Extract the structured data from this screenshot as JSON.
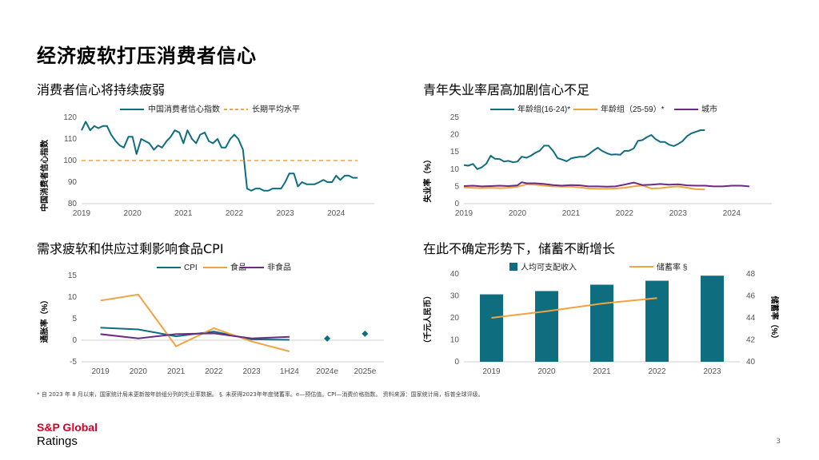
{
  "page_title": "经济疲软打压消费者信心",
  "colors": {
    "teal": "#0f6d80",
    "orange": "#f0a440",
    "purple": "#6b2a84",
    "axis": "#cfcfcf",
    "brand_red": "#d6002a"
  },
  "panels": {
    "p1_title": "消费者信心将持续疲弱",
    "p2_title": "青年失业率居高加剧信心不足",
    "p3_title": "需求疲软和供应过剩影响食品CPI",
    "p4_title": "在此不确定形势下，储蓄不断增长"
  },
  "chart_data": [
    {
      "type": "line",
      "ylabel": "中国消费者信心指数",
      "ylim": [
        80,
        120
      ],
      "yticks": [
        "80",
        "90",
        "100",
        "110",
        "120"
      ],
      "xticks": [
        "2019",
        "2020",
        "2021",
        "2022",
        "2023",
        "2024"
      ],
      "xrange": [
        2019.0,
        2024.75
      ],
      "series": [
        {
          "name": "中国消费者信心指数",
          "color": "#0f6d80",
          "style": "solid",
          "x": [
            2019.0,
            2019.08,
            2019.17,
            2019.25,
            2019.33,
            2019.42,
            2019.5,
            2019.58,
            2019.67,
            2019.75,
            2019.83,
            2019.92,
            2020.0,
            2020.08,
            2020.17,
            2020.25,
            2020.33,
            2020.42,
            2020.5,
            2020.58,
            2020.67,
            2020.75,
            2020.83,
            2020.92,
            2021.0,
            2021.08,
            2021.17,
            2021.25,
            2021.33,
            2021.42,
            2021.5,
            2021.58,
            2021.67,
            2021.75,
            2021.83,
            2021.92,
            2022.0,
            2022.08,
            2022.17,
            2022.25,
            2022.33,
            2022.42,
            2022.5,
            2022.58,
            2022.67,
            2022.75,
            2022.83,
            2022.92,
            2023.0,
            2023.08,
            2023.17,
            2023.25,
            2023.33,
            2023.42,
            2023.5,
            2023.58,
            2023.67,
            2023.75,
            2023.83,
            2023.92,
            2024.0,
            2024.08,
            2024.17,
            2024.25,
            2024.33,
            2024.42
          ],
          "y": [
            114,
            118,
            114,
            116,
            115,
            116,
            116,
            112,
            109,
            107,
            106,
            111,
            111,
            103,
            110,
            109,
            108,
            105,
            107,
            106,
            109,
            111,
            114,
            113,
            108,
            114,
            110,
            108,
            112,
            113,
            109,
            108,
            110,
            106,
            106,
            110,
            112,
            110,
            105,
            87,
            86,
            87,
            87,
            86,
            86,
            87,
            87,
            87,
            90,
            94,
            94,
            88,
            90,
            89,
            89,
            89,
            90,
            91,
            90,
            90,
            93,
            91,
            93,
            93,
            92,
            92
          ]
        },
        {
          "name": "长期平均水平",
          "color": "#f0a440",
          "style": "dashed",
          "x": [
            2019.0,
            2024.42
          ],
          "y": [
            100,
            100
          ]
        }
      ]
    },
    {
      "type": "line",
      "ylabel": "失业率（%）",
      "ylim": [
        0,
        25
      ],
      "yticks": [
        "0",
        "5",
        "10",
        "15",
        "20",
        "25"
      ],
      "xticks": [
        "2019",
        "2020",
        "2021",
        "2022",
        "2023",
        "2024"
      ],
      "xrange": [
        2019.0,
        2024.75
      ],
      "series": [
        {
          "name": "年龄组(16-24)*",
          "color": "#0f6d80",
          "x": [
            2019.0,
            2019.08,
            2019.17,
            2019.25,
            2019.33,
            2019.42,
            2019.5,
            2019.58,
            2019.67,
            2019.75,
            2019.83,
            2019.92,
            2020.0,
            2020.08,
            2020.17,
            2020.25,
            2020.33,
            2020.42,
            2020.5,
            2020.58,
            2020.67,
            2020.75,
            2020.83,
            2020.92,
            2021.0,
            2021.08,
            2021.17,
            2021.25,
            2021.33,
            2021.42,
            2021.5,
            2021.58,
            2021.67,
            2021.75,
            2021.83,
            2021.92,
            2022.0,
            2022.08,
            2022.17,
            2022.25,
            2022.33,
            2022.42,
            2022.5,
            2022.58,
            2022.67,
            2022.75,
            2022.83,
            2022.92,
            2023.0,
            2023.08,
            2023.17,
            2023.25,
            2023.33,
            2023.42,
            2023.5
          ],
          "y": [
            11.2,
            11.0,
            11.5,
            10.0,
            10.5,
            11.6,
            13.9,
            13.0,
            12.9,
            12.2,
            12.4,
            12.0,
            12.2,
            13.6,
            13.3,
            13.9,
            14.7,
            15.4,
            16.8,
            16.8,
            15.2,
            13.2,
            12.8,
            12.3,
            13.1,
            13.4,
            13.6,
            13.6,
            14.3,
            15.4,
            16.2,
            15.3,
            14.6,
            14.2,
            14.3,
            14.2,
            15.3,
            15.3,
            16.0,
            18.2,
            18.4,
            19.3,
            19.9,
            18.7,
            17.9,
            17.9,
            17.1,
            16.7,
            17.3,
            18.1,
            19.6,
            20.4,
            20.8,
            21.3,
            21.3
          ]
        },
        {
          "name": "年龄组（25-59）*",
          "color": "#f0a440",
          "x": [
            2019.0,
            2019.17,
            2019.33,
            2019.5,
            2019.67,
            2019.83,
            2020.0,
            2020.17,
            2020.33,
            2020.5,
            2020.67,
            2020.83,
            2021.0,
            2021.17,
            2021.33,
            2021.5,
            2021.67,
            2021.83,
            2022.0,
            2022.17,
            2022.33,
            2022.5,
            2022.67,
            2022.83,
            2023.0,
            2023.17,
            2023.33,
            2023.5
          ],
          "y": [
            4.7,
            4.6,
            4.5,
            4.6,
            4.5,
            4.6,
            4.9,
            5.6,
            5.5,
            5.2,
            5.0,
            4.9,
            4.9,
            4.7,
            4.4,
            4.3,
            4.3,
            4.4,
            4.6,
            5.0,
            5.3,
            4.4,
            4.5,
            4.8,
            5.0,
            4.6,
            4.2,
            4.1
          ]
        },
        {
          "name": "城市",
          "color": "#6b2a84",
          "x": [
            2019.0,
            2019.17,
            2019.33,
            2019.5,
            2019.67,
            2019.83,
            2020.0,
            2020.08,
            2020.17,
            2020.33,
            2020.5,
            2020.67,
            2020.83,
            2021.0,
            2021.17,
            2021.33,
            2021.5,
            2021.67,
            2021.83,
            2022.0,
            2022.17,
            2022.33,
            2022.5,
            2022.67,
            2022.83,
            2023.0,
            2023.17,
            2023.33,
            2023.5,
            2023.67,
            2023.83,
            2024.0,
            2024.17,
            2024.33
          ],
          "y": [
            5.1,
            5.2,
            5.0,
            5.1,
            5.2,
            5.1,
            5.3,
            6.2,
            5.9,
            5.9,
            5.7,
            5.4,
            5.2,
            5.4,
            5.3,
            5.0,
            5.0,
            4.9,
            5.0,
            5.5,
            6.1,
            5.4,
            5.5,
            5.7,
            5.5,
            5.6,
            5.3,
            5.2,
            5.2,
            5.0,
            5.0,
            5.2,
            5.2,
            5.0
          ]
        }
      ]
    },
    {
      "type": "line",
      "ylabel": "通胀率（%）",
      "ylim": [
        -5,
        15
      ],
      "yticks": [
        "-5",
        "0",
        "5",
        "10",
        "15"
      ],
      "categories": [
        "2019",
        "2020",
        "2021",
        "2022",
        "2023",
        "1H24",
        "2024e",
        "2025e"
      ],
      "series": [
        {
          "name": "CPI",
          "color": "#0f6d80",
          "values": [
            2.9,
            2.5,
            0.9,
            2.0,
            0.2,
            0.1,
            null,
            null
          ],
          "forecast": [
            null,
            null,
            null,
            null,
            null,
            null,
            0.4,
            1.5
          ]
        },
        {
          "name": "食品",
          "color": "#f0a440",
          "values": [
            9.2,
            10.6,
            -1.4,
            2.8,
            -0.3,
            -2.6,
            null,
            null
          ]
        },
        {
          "name": "非食品",
          "color": "#6b2a84",
          "values": [
            1.4,
            0.4,
            1.4,
            1.6,
            0.4,
            0.8,
            null,
            null
          ]
        }
      ]
    },
    {
      "type": "bar",
      "ylabel": "（千元人民币）",
      "y2label": "储蓄率（%）",
      "ylim": [
        0,
        40
      ],
      "y2lim": [
        40,
        48
      ],
      "yticks": [
        "0",
        "10",
        "20",
        "30",
        "40"
      ],
      "y2ticks": [
        "40",
        "42",
        "44",
        "46",
        "48"
      ],
      "categories": [
        "2019",
        "2020",
        "2021",
        "2022",
        "2023"
      ],
      "series": [
        {
          "name": "人均可支配收入",
          "color": "#0f6d80",
          "values": [
            30.7,
            32.2,
            35.1,
            36.9,
            39.2
          ]
        },
        {
          "name": "储蓄率 §",
          "color": "#f0a440",
          "values": [
            44.0,
            44.6,
            45.3,
            45.8,
            null
          ]
        }
      ]
    }
  ],
  "footnote": "* 自 2023 年 8 月以来，国家统计局未更新按年龄组分列的失业率数据。 §. 未获得2023年年度储蓄率。e—预估值。CPI—消费价格指数。   资料来源：国家统计局，标普全球评级。",
  "brand": {
    "line1": "S&P Global",
    "line2": "Ratings"
  },
  "page_number": "3"
}
